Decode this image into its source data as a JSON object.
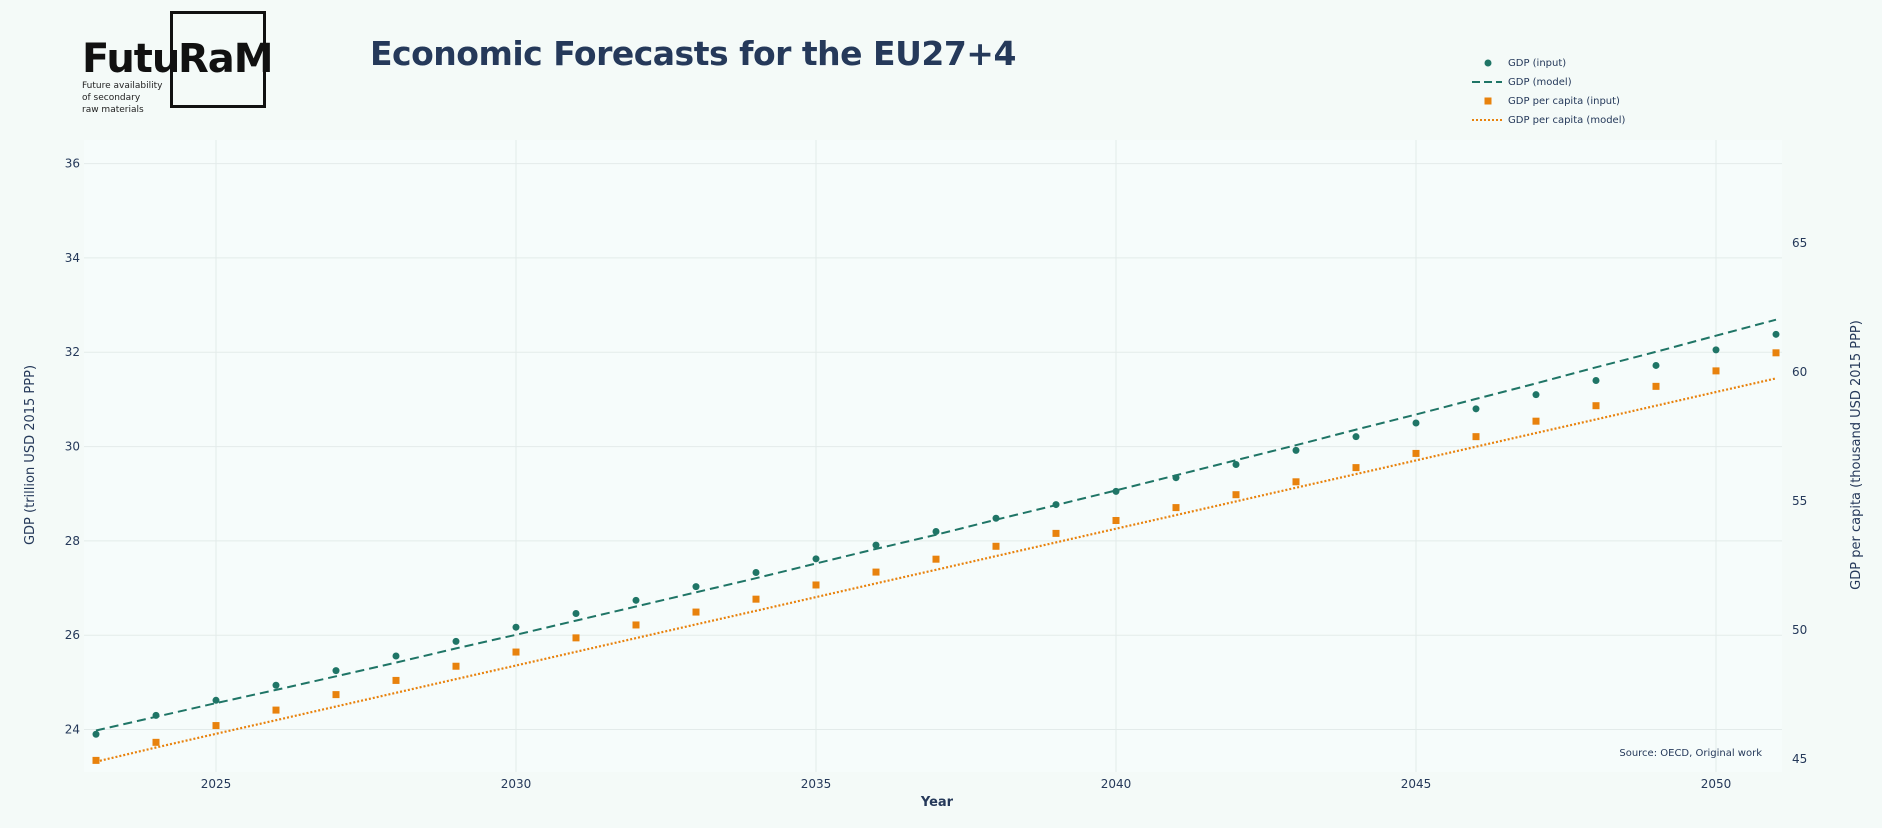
{
  "logo": {
    "word1": "Futu",
    "word2": "RaM",
    "tagline": "Future availability\nof secondary\nraw materials"
  },
  "colors": {
    "background": "#f4faf8",
    "plot_bg": "#f6fcfb",
    "grid": "#e3ebea",
    "text": "#25395a",
    "gdp": "#1f7566",
    "gdp_per_capita": "#e8820d"
  },
  "chart_data": {
    "type": "line",
    "title": "Economic Forecasts for the EU27+4",
    "xlabel": "Year",
    "ylabel": "GDP (trillion USD 2015 PPP)",
    "y2label": "GDP per capita (thousand USD 2015 PPP)",
    "source": "Source: OECD, Original work",
    "xlim": [
      2022.8,
      2051.1
    ],
    "ylim": [
      23.1,
      36.5
    ],
    "y2lim": [
      44.5,
      69.0
    ],
    "xticks": [
      2025,
      2030,
      2035,
      2040,
      2045,
      2050
    ],
    "yticks": [
      24,
      26,
      28,
      30,
      32,
      34,
      36
    ],
    "y2ticks": [
      45,
      50,
      55,
      60,
      65
    ],
    "grid": true,
    "legend_position": "top-right",
    "x": [
      2023,
      2024,
      2025,
      2026,
      2027,
      2028,
      2029,
      2030,
      2031,
      2032,
      2033,
      2034,
      2035,
      2036,
      2037,
      2038,
      2039,
      2040,
      2041,
      2042,
      2043,
      2044,
      2045,
      2046,
      2047,
      2048,
      2049,
      2050,
      2051
    ],
    "series": [
      {
        "name": "GDP (input)",
        "axis": "left",
        "style": "markers-circle",
        "values": [
          23.9,
          24.3,
          24.62,
          24.94,
          25.25,
          25.56,
          25.87,
          26.17,
          26.46,
          26.74,
          27.03,
          27.33,
          27.62,
          27.91,
          28.2,
          28.48,
          28.77,
          29.05,
          29.34,
          29.62,
          29.92,
          30.21,
          30.5,
          30.8,
          31.1,
          31.4,
          31.72,
          32.05,
          32.38
        ]
      },
      {
        "name": "GDP (model)",
        "axis": "left",
        "style": "dashed",
        "values": [
          23.98,
          24.27,
          24.56,
          24.84,
          25.13,
          25.42,
          25.72,
          26.01,
          26.31,
          26.61,
          26.91,
          27.21,
          27.52,
          27.83,
          28.13,
          28.45,
          28.76,
          29.07,
          29.39,
          29.71,
          30.03,
          30.36,
          30.68,
          31.01,
          31.34,
          31.68,
          32.01,
          32.35,
          32.69
        ]
      },
      {
        "name": "GDP per capita (input)",
        "axis": "right",
        "style": "markers-square",
        "values": [
          44.95,
          45.65,
          46.3,
          46.9,
          47.5,
          48.05,
          48.6,
          49.15,
          49.7,
          50.2,
          50.7,
          51.2,
          51.75,
          52.25,
          52.75,
          53.25,
          53.75,
          54.25,
          54.75,
          55.25,
          55.75,
          56.3,
          56.85,
          57.5,
          58.1,
          58.7,
          59.45,
          60.05,
          60.75
        ]
      },
      {
        "name": "GDP per capita (model)",
        "axis": "right",
        "style": "dotted",
        "values": [
          44.9,
          45.45,
          45.98,
          46.51,
          47.04,
          47.57,
          48.1,
          48.63,
          49.16,
          49.69,
          50.22,
          50.75,
          51.28,
          51.81,
          52.34,
          52.87,
          53.4,
          53.93,
          54.46,
          54.99,
          55.52,
          56.05,
          56.58,
          57.11,
          57.64,
          58.17,
          58.7,
          59.23,
          59.76
        ]
      }
    ]
  }
}
